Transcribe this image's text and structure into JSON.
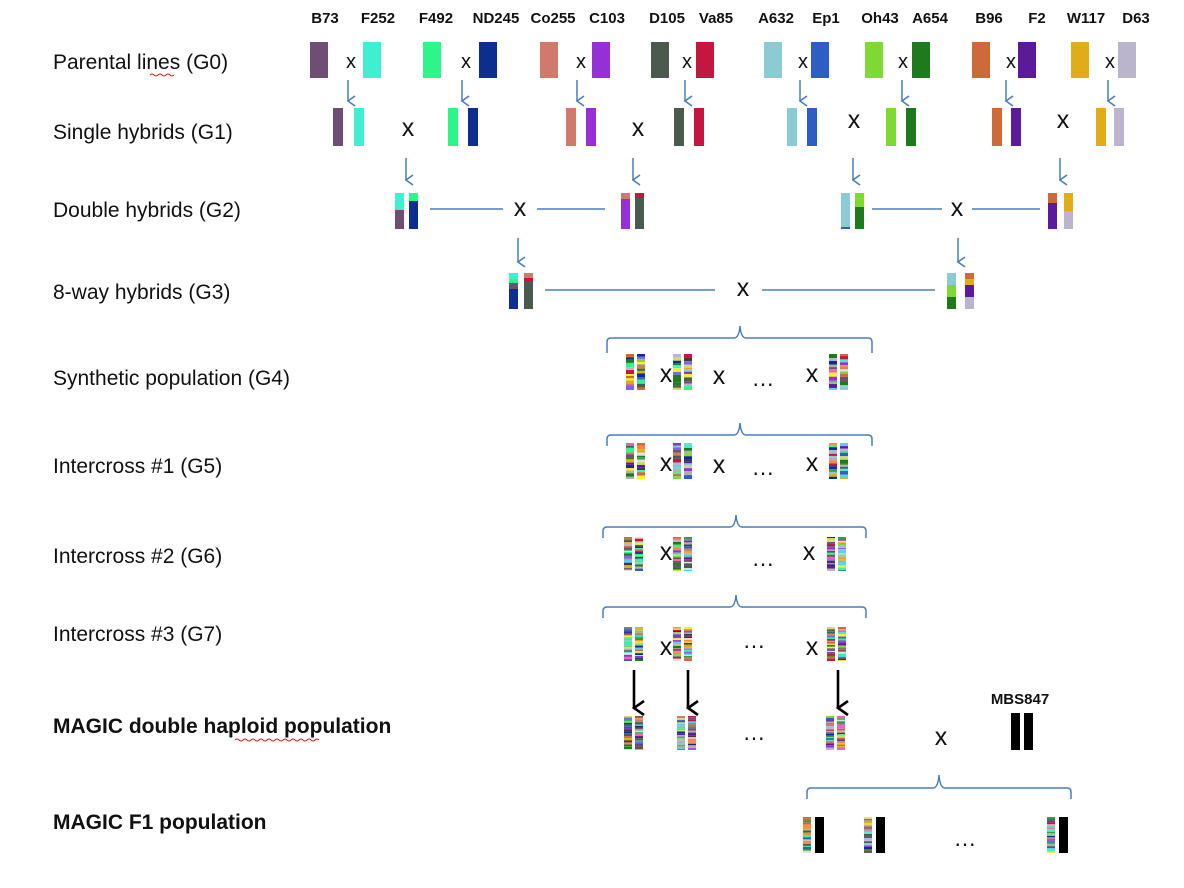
{
  "parental_names": [
    "B73",
    "F252",
    "F492",
    "ND245",
    "Co255",
    "C103",
    "D105",
    "Va85",
    "A632",
    "Ep1",
    "Oh43",
    "A654",
    "B96",
    "F2",
    "W117",
    "D63"
  ],
  "parental_colors": [
    "#6f4e73",
    "#3ff0d0",
    "#2ef58a",
    "#0d2e8f",
    "#cf7a6b",
    "#9530d6",
    "#4b5a4f",
    "#c4173f",
    "#8ccad4",
    "#2e5ec4",
    "#7fd934",
    "#1e7a1c",
    "#cc6a3a",
    "#5a1a9a",
    "#e0ac18",
    "#bab4cc"
  ],
  "generations": [
    {
      "label": "Parental lines (G0)"
    },
    {
      "label": "Single hybrids (G1)"
    },
    {
      "label": "Double hybrids (G2)"
    },
    {
      "label": "8-way hybrids (G3)"
    },
    {
      "label": "Synthetic population (G4)"
    },
    {
      "label": "Intercross #1 (G5)"
    },
    {
      "label": "Intercross #2 (G6)"
    },
    {
      "label": "Intercross #3 (G7)"
    },
    {
      "label": "MAGIC double haploid population"
    },
    {
      "label": "MAGIC F1 population"
    }
  ],
  "cross_symbol": "x",
  "ellipsis": "…",
  "tester": {
    "name": "MBS847",
    "color": "#000000"
  }
}
